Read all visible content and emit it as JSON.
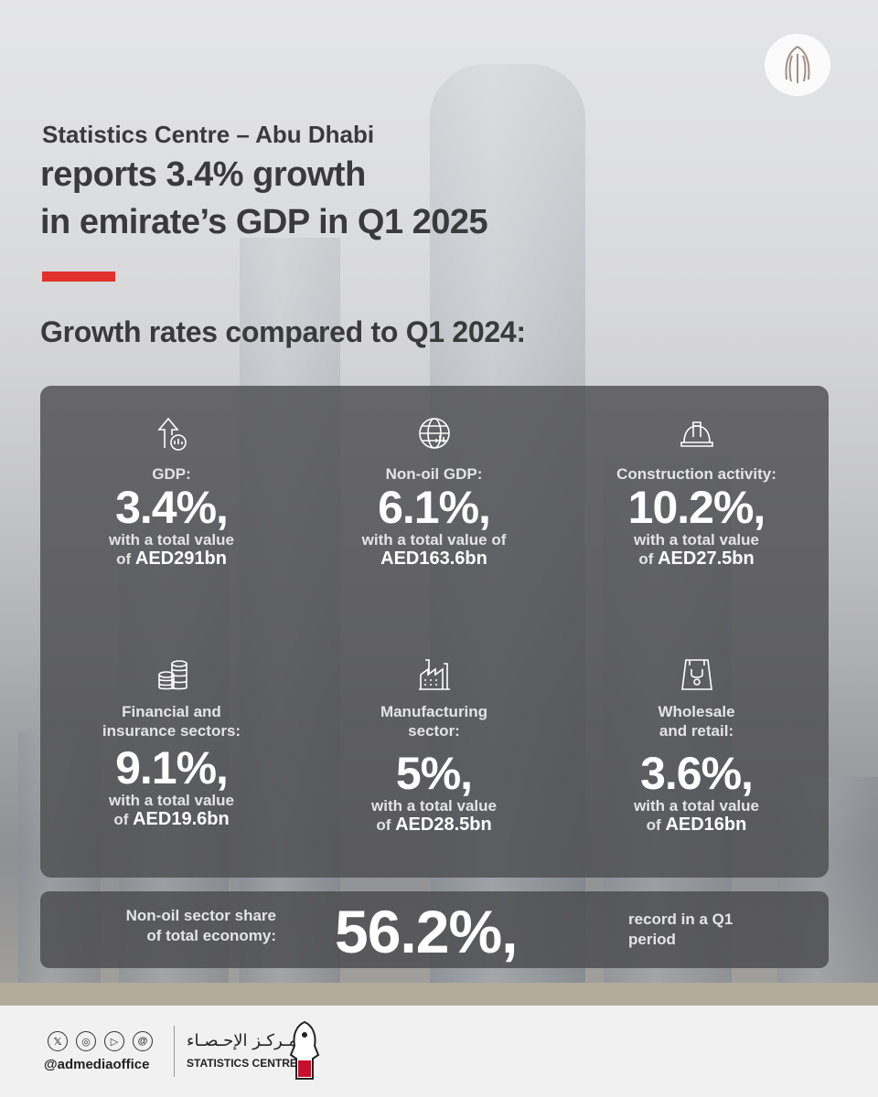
{
  "header": {
    "line1": "Statistics Centre – Abu Dhabi",
    "line2": "reports 3.4% growth",
    "line3": "in emirate’s GDP in Q1 2025",
    "accent_color": "#e2322b"
  },
  "subtitle": "Growth rates compared to Q1 2024:",
  "stats": [
    {
      "icon": "growth-chart-icon",
      "label": "GDP:",
      "value": "3.4%,",
      "detail_line1": "with a total value",
      "detail_prefix": "of ",
      "amount": "AED291bn"
    },
    {
      "icon": "globe-chart-icon",
      "label": "Non-oil GDP:",
      "value": "6.1%,",
      "detail_line1": "with a total value of",
      "detail_prefix": "",
      "amount": "AED163.6bn"
    },
    {
      "icon": "hard-hat-icon",
      "label": "Construction activity:",
      "value": "10.2%,",
      "detail_line1": "with a total value",
      "detail_prefix": "of ",
      "amount": "AED27.5bn"
    },
    {
      "icon": "coins-stack-icon",
      "label_line1": "Financial and",
      "label_line2": "insurance sectors:",
      "value": "9.1%,",
      "detail_line1": "with a total value",
      "detail_prefix": "of ",
      "amount": "AED19.6bn"
    },
    {
      "icon": "factory-icon",
      "label_line1": "Manufacturing",
      "label_line2": "sector:",
      "value": "5%,",
      "detail_line1": "with a total value",
      "detail_prefix": "of ",
      "amount": "AED28.5bn"
    },
    {
      "icon": "shopping-bag-icon",
      "label_line1": "Wholesale",
      "label_line2": "and retail:",
      "value": "3.6%,",
      "detail_line1": "with a total value",
      "detail_prefix": "of ",
      "amount": "AED16bn"
    }
  ],
  "share": {
    "label_line1": "Non-oil sector share",
    "label_line2": "of total economy:",
    "value": "56.2%,",
    "note_line1": "record in a Q1",
    "note_line2": "period"
  },
  "footer": {
    "social_icons": [
      "x-icon",
      "instagram-icon",
      "youtube-icon",
      "threads-icon"
    ],
    "handle": "@admediaoffice",
    "org_arabic": "مـركـز الإحـصـاء",
    "org_english": "STATISTICS CENTRE"
  }
}
